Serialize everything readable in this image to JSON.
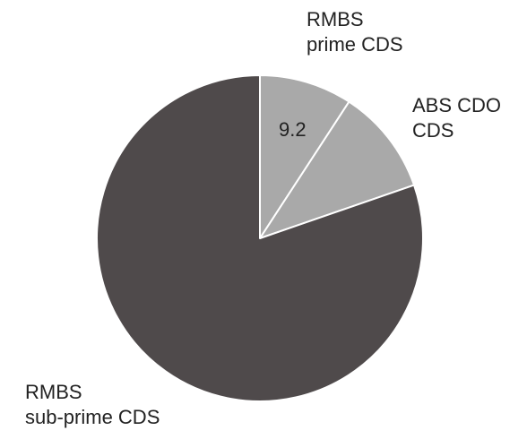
{
  "chart_data": {
    "type": "pie",
    "title": "",
    "legend": "none",
    "slices": [
      {
        "name_lines": [
          "RMBS",
          "prime CDS"
        ],
        "value": 9.2,
        "value_label": "9.2",
        "color": "#a9a9a9"
      },
      {
        "name_lines": [
          "ABS CDO",
          "CDS"
        ],
        "value": 10.5,
        "value_label": "",
        "color": "#a9a9a9"
      },
      {
        "name_lines": [
          "RMBS",
          "sub-prime CDS"
        ],
        "value": 80.3,
        "value_label": "",
        "color": "#4f4a4b"
      }
    ],
    "start_angle_deg": 0,
    "direction": "clockwise",
    "separator_color": "#ffffff"
  }
}
